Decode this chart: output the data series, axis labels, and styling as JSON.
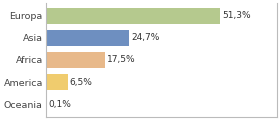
{
  "categories": [
    "Europa",
    "Asia",
    "Africa",
    "America",
    "Oceania"
  ],
  "values": [
    51.3,
    24.7,
    17.5,
    6.5,
    0.1
  ],
  "labels": [
    "51,3%",
    "24,7%",
    "17,5%",
    "6,5%",
    "0,1%"
  ],
  "bar_colors": [
    "#b5c98e",
    "#6e8fc0",
    "#e8b98a",
    "#f0cc6e",
    "#d0d0d0"
  ],
  "background_color": "#ffffff",
  "bar_height": 0.72,
  "xlim": [
    0,
    68
  ],
  "label_fontsize": 6.5,
  "tick_fontsize": 6.8
}
